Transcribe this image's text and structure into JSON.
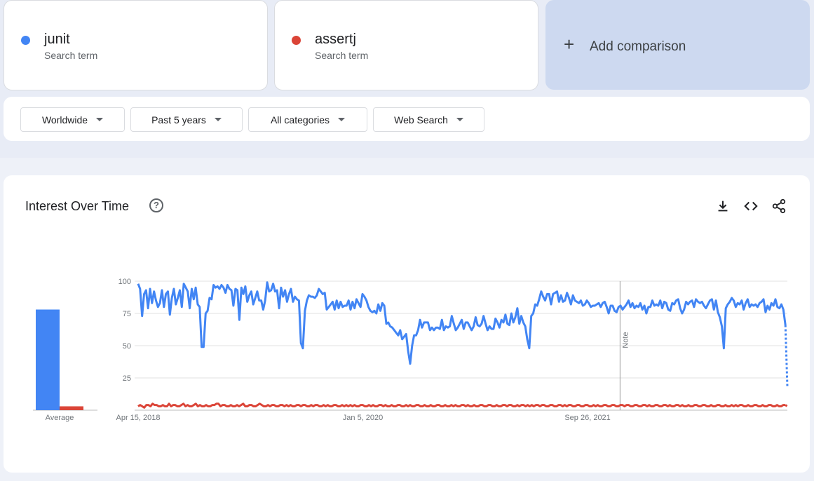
{
  "terms": [
    {
      "name": "junit",
      "subtitle": "Search term",
      "color": "#4285f4"
    },
    {
      "name": "assertj",
      "subtitle": "Search term",
      "color": "#db4437"
    }
  ],
  "add_comparison": {
    "plus": "+",
    "label": "Add comparison"
  },
  "filters": {
    "region": "Worldwide",
    "time": "Past 5 years",
    "category": "All categories",
    "property": "Web Search"
  },
  "chart_title": "Interest Over Time",
  "help_glyph": "?",
  "icons": [
    "download-icon",
    "embed-icon",
    "share-icon"
  ],
  "chart_data": {
    "type": "line",
    "ylim": [
      0,
      100
    ],
    "yticks": [
      "100",
      "75",
      "50",
      "25"
    ],
    "x_start": "2018-04-15",
    "x_end": "2023-04-09",
    "x_tick_labels": [
      "Apr 15, 2018",
      "Jan 5, 2020",
      "Sep 26, 2021"
    ],
    "grid": true,
    "note_label": "Note",
    "note_date": "2021-12-26",
    "partial_final_point": true,
    "average": {
      "label": "Average",
      "values": [
        78,
        3
      ]
    },
    "series": [
      {
        "color": "#4285f4",
        "values": [
          98,
          94,
          73,
          90,
          93,
          79,
          94,
          83,
          92,
          85,
          80,
          83,
          93,
          80,
          90,
          92,
          74,
          87,
          94,
          82,
          87,
          93,
          80,
          98,
          95,
          92,
          79,
          94,
          86,
          95,
          82,
          80,
          49,
          49,
          75,
          77,
          87,
          86,
          97,
          95,
          96,
          94,
          97,
          95,
          91,
          97,
          94,
          93,
          81,
          94,
          93,
          70,
          95,
          90,
          96,
          84,
          89,
          92,
          82,
          87,
          92,
          85,
          85,
          78,
          85,
          99,
          92,
          93,
          98,
          92,
          93,
          79,
          95,
          88,
          93,
          84,
          90,
          94,
          84,
          88,
          86,
          85,
          52,
          48,
          77,
          85,
          89,
          88,
          88,
          87,
          89,
          94,
          92,
          90,
          91,
          78,
          80,
          82,
          84,
          78,
          85,
          79,
          84,
          80,
          81,
          81,
          85,
          78,
          84,
          79,
          86,
          83,
          80,
          90,
          88,
          85,
          80,
          77,
          76,
          77,
          75,
          82,
          77,
          83,
          81,
          67,
          68,
          65,
          64,
          62,
          60,
          58,
          62,
          55,
          57,
          59,
          46,
          36,
          50,
          58,
          58,
          62,
          70,
          64,
          68,
          68,
          68,
          62,
          64,
          62,
          64,
          64,
          63,
          70,
          62,
          65,
          64,
          65,
          73,
          67,
          62,
          64,
          67,
          70,
          63,
          68,
          68,
          65,
          62,
          65,
          72,
          66,
          65,
          67,
          73,
          67,
          62,
          65,
          63,
          63,
          71,
          68,
          64,
          70,
          68,
          74,
          67,
          66,
          75,
          68,
          72,
          79,
          67,
          73,
          68,
          65,
          55,
          48,
          73,
          75,
          82,
          81,
          86,
          92,
          88,
          85,
          90,
          90,
          82,
          90,
          91,
          92,
          84,
          89,
          84,
          85,
          91,
          87,
          82,
          89,
          85,
          84,
          83,
          85,
          81,
          82,
          85,
          83,
          80,
          81,
          81,
          82,
          83,
          80,
          83,
          84,
          80,
          75,
          81,
          81,
          77,
          76,
          80,
          81,
          78,
          80,
          82,
          85,
          80,
          83,
          79,
          81,
          80,
          83,
          78,
          81,
          75,
          80,
          80,
          85,
          81,
          82,
          81,
          85,
          79,
          84,
          83,
          78,
          77,
          83,
          82,
          85,
          86,
          79,
          75,
          78,
          84,
          82,
          84,
          85,
          80,
          86,
          84,
          83,
          84,
          81,
          79,
          82,
          85,
          86,
          78,
          85,
          76,
          72,
          65,
          48,
          79,
          82,
          84,
          87,
          85,
          80,
          83,
          82,
          85,
          78,
          83,
          86,
          80,
          82,
          81,
          82,
          80,
          83,
          84,
          86,
          76,
          81,
          78,
          83,
          81,
          86,
          80,
          79,
          82,
          78,
          66,
          18
        ]
      },
      {
        "color": "#db4437",
        "values": [
          3,
          4,
          3,
          2,
          4,
          4,
          3,
          5,
          4,
          4,
          3,
          3,
          4,
          3,
          3,
          5,
          3,
          4,
          4,
          3,
          3,
          4,
          5,
          3,
          4,
          3,
          3,
          4,
          5,
          3,
          4,
          3,
          3,
          4,
          3,
          3,
          4,
          4,
          5,
          5,
          3,
          4,
          4,
          3,
          3,
          4,
          3,
          3,
          4,
          3,
          4,
          5,
          3,
          3,
          4,
          4,
          3,
          3,
          4,
          5,
          4,
          3,
          3,
          4,
          3,
          4,
          4,
          3,
          3,
          4,
          4,
          3,
          4,
          3,
          4,
          3,
          3,
          4,
          4,
          3,
          4,
          4,
          3,
          3,
          4,
          3,
          4,
          4,
          3,
          3,
          4,
          3,
          4,
          3,
          3,
          4,
          4,
          3,
          3,
          4,
          3,
          4,
          3,
          4,
          3,
          4,
          3,
          3,
          4,
          4,
          3,
          3,
          4,
          3,
          4,
          3,
          3,
          4,
          4,
          3,
          4,
          3,
          3,
          4,
          3,
          3,
          4,
          4,
          3,
          3,
          4,
          3,
          4,
          3,
          3,
          4,
          4,
          3,
          3,
          4,
          3,
          3,
          4,
          3,
          3,
          4,
          4,
          3,
          3,
          4,
          3,
          3,
          4,
          3,
          4,
          3,
          3,
          4,
          4,
          3,
          4,
          3,
          3,
          4,
          3,
          3,
          4,
          4,
          3,
          3,
          4,
          4,
          3,
          3,
          4,
          3,
          3,
          4,
          4,
          3,
          4,
          4,
          3,
          3,
          4,
          3,
          4,
          4,
          3,
          4,
          3,
          4,
          3,
          4,
          4,
          3,
          4,
          4,
          3,
          3,
          4,
          4,
          3,
          3,
          4,
          4,
          3,
          4,
          3,
          4,
          4,
          3,
          3,
          4,
          4,
          3,
          3,
          4,
          4,
          3,
          3,
          4,
          3,
          4,
          3,
          3,
          4,
          4,
          3,
          3,
          4,
          4,
          3,
          3,
          4,
          4,
          3,
          4,
          4,
          3,
          3,
          4,
          4,
          3,
          3,
          4,
          4,
          3,
          4,
          3,
          3,
          4,
          4,
          3,
          3,
          4,
          4,
          3,
          4,
          3,
          3,
          4,
          4,
          3,
          4,
          3,
          3,
          4,
          3,
          3,
          4,
          4,
          3,
          3,
          4,
          4,
          3,
          3,
          4,
          3,
          3,
          4,
          4,
          3,
          3,
          4,
          3,
          3,
          4,
          3,
          4,
          3,
          4,
          4,
          3,
          3,
          4,
          3,
          3,
          4,
          4,
          3,
          3,
          4,
          3,
          3,
          4,
          4,
          3,
          3,
          4,
          3,
          3,
          4,
          4,
          3
        ]
      }
    ]
  }
}
